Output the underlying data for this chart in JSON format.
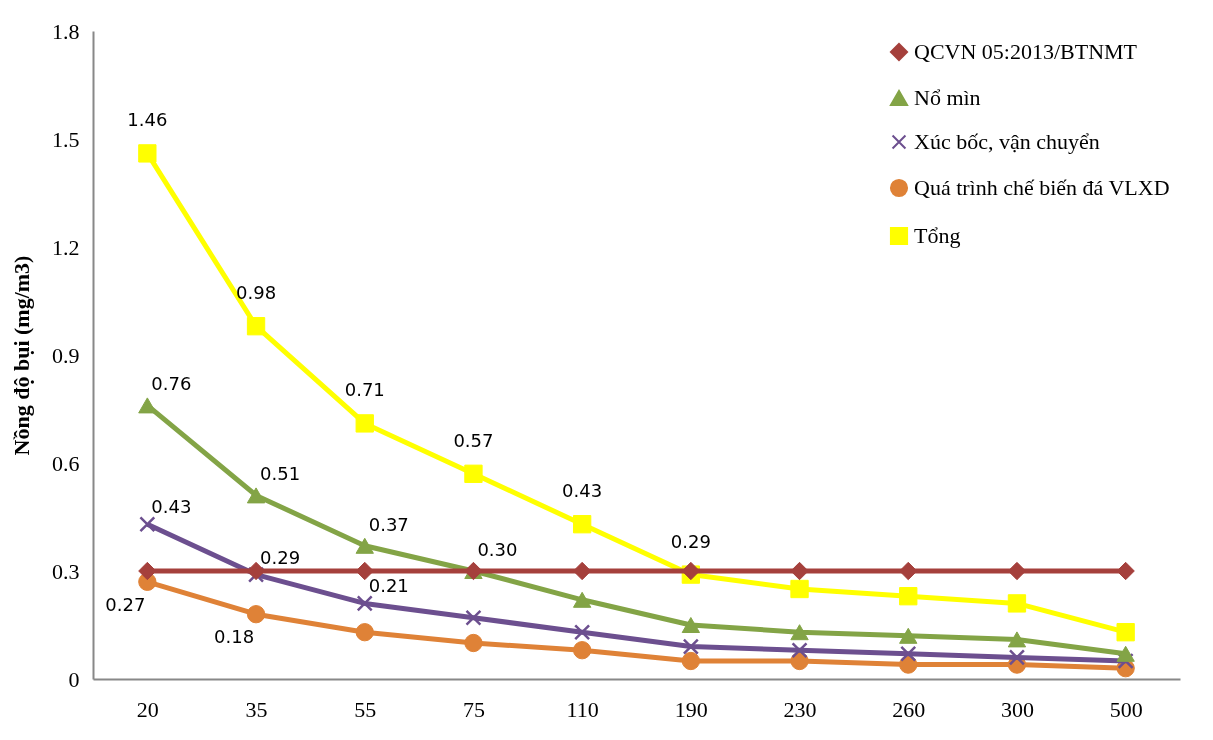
{
  "chart_data": {
    "type": "line",
    "ylabel": "Nồng độ bụi (mg/m3)",
    "categories": [
      "20",
      "35",
      "55",
      "75",
      "110",
      "190",
      "230",
      "260",
      "300",
      "500"
    ],
    "ylim": [
      0,
      1.8
    ],
    "yticks": [
      0,
      0.3,
      0.6,
      0.9,
      1.2,
      1.5,
      1.8
    ],
    "grid": false,
    "legend": "top right",
    "series": [
      {
        "name": "QCVN 05:2013/BTNMT",
        "color": "#a5403c",
        "marker": "diamond",
        "values": [
          0.3,
          0.3,
          0.3,
          0.3,
          0.3,
          0.3,
          0.3,
          0.3,
          0.3,
          0.3
        ]
      },
      {
        "name": "Nổ mìn",
        "color": "#83a446",
        "marker": "triangle",
        "values": [
          0.76,
          0.51,
          0.37,
          0.3,
          0.22,
          0.15,
          0.13,
          0.12,
          0.11,
          0.07
        ],
        "value_labels": [
          "0.76",
          "0.51",
          "0.37",
          "0.30",
          null,
          null,
          null,
          null,
          null,
          null
        ]
      },
      {
        "name": "Xúc bốc, vận chuyển",
        "color": "#6c4f8f",
        "marker": "cross",
        "values": [
          0.43,
          0.29,
          0.21,
          0.17,
          0.13,
          0.09,
          0.08,
          0.07,
          0.06,
          0.05
        ],
        "value_labels": [
          "0.43",
          "0.29",
          "0.21",
          null,
          null,
          null,
          null,
          null,
          null,
          null
        ]
      },
      {
        "name": "Quá trình chế biến đá VLXD",
        "color": "#df8237",
        "marker": "circle",
        "values": [
          0.27,
          0.18,
          0.13,
          0.1,
          0.08,
          0.05,
          0.05,
          0.04,
          0.04,
          0.03
        ],
        "value_labels": [
          "0.27",
          "0.18",
          null,
          null,
          null,
          null,
          null,
          null,
          null,
          null
        ]
      },
      {
        "name": "Tổng",
        "color": "#ffff00",
        "marker": "square",
        "values": [
          1.46,
          0.98,
          0.71,
          0.57,
          0.43,
          0.29,
          0.25,
          0.23,
          0.21,
          0.13
        ],
        "value_labels": [
          "1.46",
          "0.98",
          "0.71",
          "0.57",
          "0.43",
          "0.29",
          null,
          null,
          null,
          null
        ]
      }
    ]
  }
}
